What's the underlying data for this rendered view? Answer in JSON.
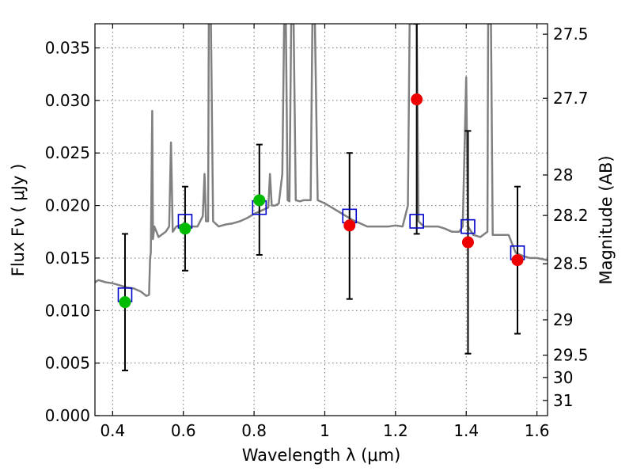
{
  "chart_data": {
    "type": "scatter",
    "xlabel": "Wavelength  λ (μm)",
    "ylabel": "Flux  Fν  ( μJy )",
    "ylabel_right": "Magnitude (AB)",
    "xlim": [
      0.35,
      1.63
    ],
    "ylim": [
      0.0,
      0.0373
    ],
    "x_ticks": [
      0.4,
      0.6,
      0.8,
      1.0,
      1.2,
      1.4,
      1.6
    ],
    "x_tick_labels": [
      "0.4",
      "0.6",
      "0.8",
      "1",
      "1.2",
      "1.4",
      "1.6"
    ],
    "y_ticks": [
      0.0,
      0.005,
      0.01,
      0.015,
      0.02,
      0.025,
      0.03,
      0.035
    ],
    "y_tick_labels": [
      "0.000",
      "0.005",
      "0.010",
      "0.015",
      "0.020",
      "0.025",
      "0.030",
      "0.035"
    ],
    "mag_ticks": [
      27.5,
      27.7,
      28,
      28.2,
      28.5,
      29,
      29.5,
      30,
      31
    ],
    "mag_tick_labels": [
      "27.5",
      "27.7",
      "28",
      "28.2",
      "28.5",
      "29",
      "29.5",
      "30",
      "31"
    ],
    "grid": true,
    "colors": {
      "sed": "#808080",
      "model_box": "#0000cc",
      "detection": "#00bb00",
      "upper": "#ee0000",
      "errorbar": "#000000"
    },
    "sed_spectrum": [
      [
        0.35,
        0.0127
      ],
      [
        0.36,
        0.0129
      ],
      [
        0.38,
        0.0127
      ],
      [
        0.4,
        0.0126
      ],
      [
        0.42,
        0.0124
      ],
      [
        0.44,
        0.0122
      ],
      [
        0.46,
        0.0121
      ],
      [
        0.48,
        0.0118
      ],
      [
        0.495,
        0.0114
      ],
      [
        0.503,
        0.0115
      ],
      [
        0.506,
        0.015
      ],
      [
        0.508,
        0.0155
      ],
      [
        0.512,
        0.029
      ],
      [
        0.514,
        0.0168
      ],
      [
        0.518,
        0.018
      ],
      [
        0.53,
        0.017
      ],
      [
        0.55,
        0.0175
      ],
      [
        0.56,
        0.018
      ],
      [
        0.565,
        0.026
      ],
      [
        0.57,
        0.0175
      ],
      [
        0.58,
        0.018
      ],
      [
        0.6,
        0.0182
      ],
      [
        0.62,
        0.018
      ],
      [
        0.64,
        0.018
      ],
      [
        0.655,
        0.019
      ],
      [
        0.66,
        0.023
      ],
      [
        0.664,
        0.0185
      ],
      [
        0.67,
        0.0185
      ],
      [
        0.672,
        0.0373
      ],
      [
        0.678,
        0.0373
      ],
      [
        0.684,
        0.0185
      ],
      [
        0.7,
        0.018
      ],
      [
        0.72,
        0.0182
      ],
      [
        0.74,
        0.0183
      ],
      [
        0.76,
        0.0185
      ],
      [
        0.78,
        0.0188
      ],
      [
        0.8,
        0.0192
      ],
      [
        0.82,
        0.0195
      ],
      [
        0.84,
        0.0198
      ],
      [
        0.845,
        0.023
      ],
      [
        0.85,
        0.02
      ],
      [
        0.86,
        0.02
      ],
      [
        0.87,
        0.0202
      ],
      [
        0.88,
        0.023
      ],
      [
        0.885,
        0.0373
      ],
      [
        0.89,
        0.0373
      ],
      [
        0.895,
        0.0205
      ],
      [
        0.9,
        0.0204
      ],
      [
        0.905,
        0.0373
      ],
      [
        0.912,
        0.0373
      ],
      [
        0.918,
        0.0205
      ],
      [
        0.93,
        0.0204
      ],
      [
        0.94,
        0.0205
      ],
      [
        0.96,
        0.0205
      ],
      [
        0.965,
        0.0373
      ],
      [
        0.972,
        0.0373
      ],
      [
        0.98,
        0.0205
      ],
      [
        1.0,
        0.0202
      ],
      [
        1.02,
        0.0198
      ],
      [
        1.04,
        0.0194
      ],
      [
        1.06,
        0.019
      ],
      [
        1.08,
        0.0186
      ],
      [
        1.1,
        0.0183
      ],
      [
        1.12,
        0.018
      ],
      [
        1.14,
        0.018
      ],
      [
        1.16,
        0.018
      ],
      [
        1.18,
        0.018
      ],
      [
        1.2,
        0.0181
      ],
      [
        1.22,
        0.018
      ],
      [
        1.235,
        0.02
      ],
      [
        1.24,
        0.0373
      ],
      [
        1.26,
        0.0373
      ],
      [
        1.265,
        0.0185
      ],
      [
        1.28,
        0.018
      ],
      [
        1.3,
        0.018
      ],
      [
        1.32,
        0.018
      ],
      [
        1.34,
        0.0178
      ],
      [
        1.36,
        0.0175
      ],
      [
        1.38,
        0.0175
      ],
      [
        1.39,
        0.018
      ],
      [
        1.4,
        0.0322
      ],
      [
        1.405,
        0.018
      ],
      [
        1.42,
        0.0172
      ],
      [
        1.44,
        0.017
      ],
      [
        1.46,
        0.0175
      ],
      [
        1.462,
        0.0373
      ],
      [
        1.47,
        0.0373
      ],
      [
        1.475,
        0.0172
      ],
      [
        1.48,
        0.0172
      ],
      [
        1.5,
        0.0172
      ],
      [
        1.52,
        0.0172
      ],
      [
        1.54,
        0.0155
      ],
      [
        1.56,
        0.0152
      ],
      [
        1.58,
        0.015
      ],
      [
        1.6,
        0.015
      ],
      [
        1.63,
        0.0148
      ]
    ],
    "model_photometry": [
      {
        "x": 0.435,
        "y": 0.0115
      },
      {
        "x": 0.605,
        "y": 0.0185
      },
      {
        "x": 0.815,
        "y": 0.0198
      },
      {
        "x": 1.07,
        "y": 0.019
      },
      {
        "x": 1.26,
        "y": 0.0185
      },
      {
        "x": 1.405,
        "y": 0.018
      },
      {
        "x": 1.545,
        "y": 0.0155
      }
    ],
    "observed_photometry": [
      {
        "x": 0.435,
        "y": 0.0108,
        "yerr_low": 0.0065,
        "yerr_high": 0.0065,
        "color": "#00bb00"
      },
      {
        "x": 0.605,
        "y": 0.0178,
        "yerr_low": 0.004,
        "yerr_high": 0.004,
        "color": "#00bb00"
      },
      {
        "x": 0.815,
        "y": 0.0205,
        "yerr_low": 0.0052,
        "yerr_high": 0.0053,
        "color": "#00bb00"
      },
      {
        "x": 1.07,
        "y": 0.0181,
        "yerr_low": 0.007,
        "yerr_high": 0.0069,
        "color": "#ee0000"
      },
      {
        "x": 1.26,
        "y": 0.0301,
        "yerr_low": 0.0128,
        "yerr_high": 0.0072,
        "color": "#ee0000"
      },
      {
        "x": 1.405,
        "y": 0.0165,
        "yerr_low": 0.0106,
        "yerr_high": 0.0106,
        "color": "#ee0000"
      },
      {
        "x": 1.545,
        "y": 0.0148,
        "yerr_low": 0.007,
        "yerr_high": 0.007,
        "color": "#ee0000"
      }
    ]
  }
}
